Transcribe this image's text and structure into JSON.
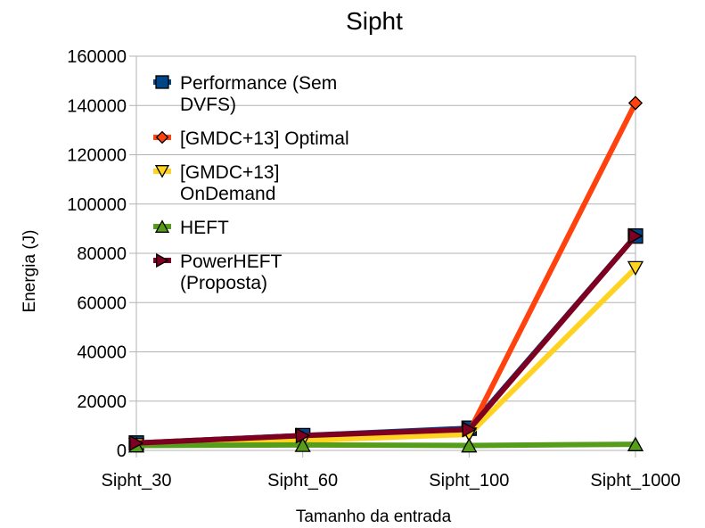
{
  "chart_data": {
    "type": "line",
    "title": "Sipht",
    "xlabel": "Tamanho da entrada",
    "ylabel": "Energia (J)",
    "categories": [
      "Sipht_30",
      "Sipht_60",
      "Sipht_100",
      "Sipht_1000"
    ],
    "ylim": [
      0,
      160000
    ],
    "yticks": [
      0,
      20000,
      40000,
      60000,
      80000,
      100000,
      120000,
      140000,
      160000
    ],
    "grid": "horizontal",
    "legend_position": "top-left",
    "series": [
      {
        "name": "Performance (Sem DVFS)",
        "name_lines": [
          "Performance (Sem",
          "DVFS)"
        ],
        "color": "#004586",
        "marker": "square",
        "values": [
          3000,
          6000,
          9000,
          87000
        ]
      },
      {
        "name": "[GMDC+13] Optimal",
        "name_lines": [
          "[GMDC+13] Optimal"
        ],
        "color": "#ff420e",
        "marker": "diamond",
        "values": [
          2500,
          5000,
          7500,
          141000
        ]
      },
      {
        "name": "[GMDC+13] OnDemand",
        "name_lines": [
          "[GMDC+13]",
          "OnDemand"
        ],
        "color": "#ffd320",
        "marker": "triangle-down",
        "values": [
          2200,
          4000,
          6500,
          74000
        ]
      },
      {
        "name": "HEFT",
        "name_lines": [
          "HEFT"
        ],
        "color": "#579d1c",
        "marker": "triangle-up",
        "values": [
          2000,
          2200,
          2000,
          2500
        ]
      },
      {
        "name": "PowerHEFT (Proposta)",
        "name_lines": [
          "PowerHEFT",
          "(Proposta)"
        ],
        "color": "#7e0021",
        "marker": "triangle-right",
        "values": [
          3000,
          6000,
          8500,
          87000
        ]
      }
    ]
  }
}
